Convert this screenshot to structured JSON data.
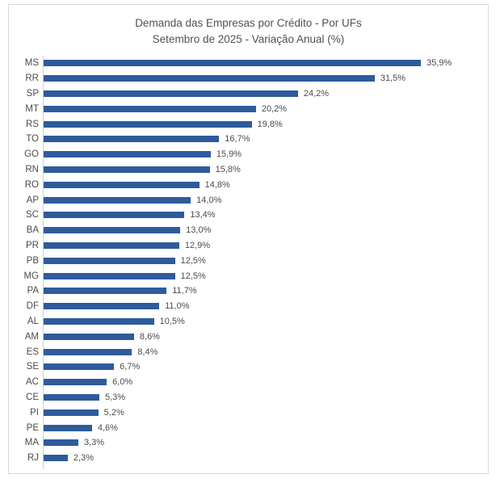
{
  "header": {
    "title_line1": "Demanda das Empresas por Crédito - Por UFs",
    "title_line2": "Setembro de 2025 - Variação Anual (%)"
  },
  "colors": {
    "bar": "#2E5B9B",
    "border": "#D9D9D9",
    "axis": "#CFCFCF",
    "text": "#4C4C4C",
    "title": "#515151"
  },
  "chart_data": {
    "type": "bar",
    "orientation": "horizontal",
    "title": "Demanda das Empresas por Crédito - Por UFs",
    "subtitle": "Setembro de 2025 - Variação Anual (%)",
    "unit": "%",
    "categories": [
      "MS",
      "RR",
      "SP",
      "MT",
      "RS",
      "TO",
      "GO",
      "RN",
      "RO",
      "AP",
      "SC",
      "BA",
      "PR",
      "PB",
      "MG",
      "PA",
      "DF",
      "AL",
      "AM",
      "ES",
      "SE",
      "AC",
      "CE",
      "PI",
      "PE",
      "MA",
      "RJ"
    ],
    "values": [
      35.9,
      31.5,
      24.2,
      20.2,
      19.8,
      16.7,
      15.9,
      15.8,
      14.8,
      14.0,
      13.4,
      13.0,
      12.9,
      12.5,
      12.5,
      11.7,
      11.0,
      10.5,
      8.6,
      8.4,
      6.7,
      6.0,
      5.3,
      5.2,
      4.6,
      3.3,
      2.3
    ],
    "value_labels": [
      "35,9%",
      "31,5%",
      "24,2%",
      "20,2%",
      "19,8%",
      "16,7%",
      "15,9%",
      "15,8%",
      "14,8%",
      "14,0%",
      "13,4%",
      "13,0%",
      "12,9%",
      "12,5%",
      "12,5%",
      "11,7%",
      "11,0%",
      "10,5%",
      "8,6%",
      "8,4%",
      "6,7%",
      "6,0%",
      "5,3%",
      "5,2%",
      "4,6%",
      "3,3%",
      "2,3%"
    ],
    "xlim": [
      0,
      41.5
    ],
    "grid": false,
    "legend": false,
    "data_labels": true,
    "sorted": "descending"
  }
}
